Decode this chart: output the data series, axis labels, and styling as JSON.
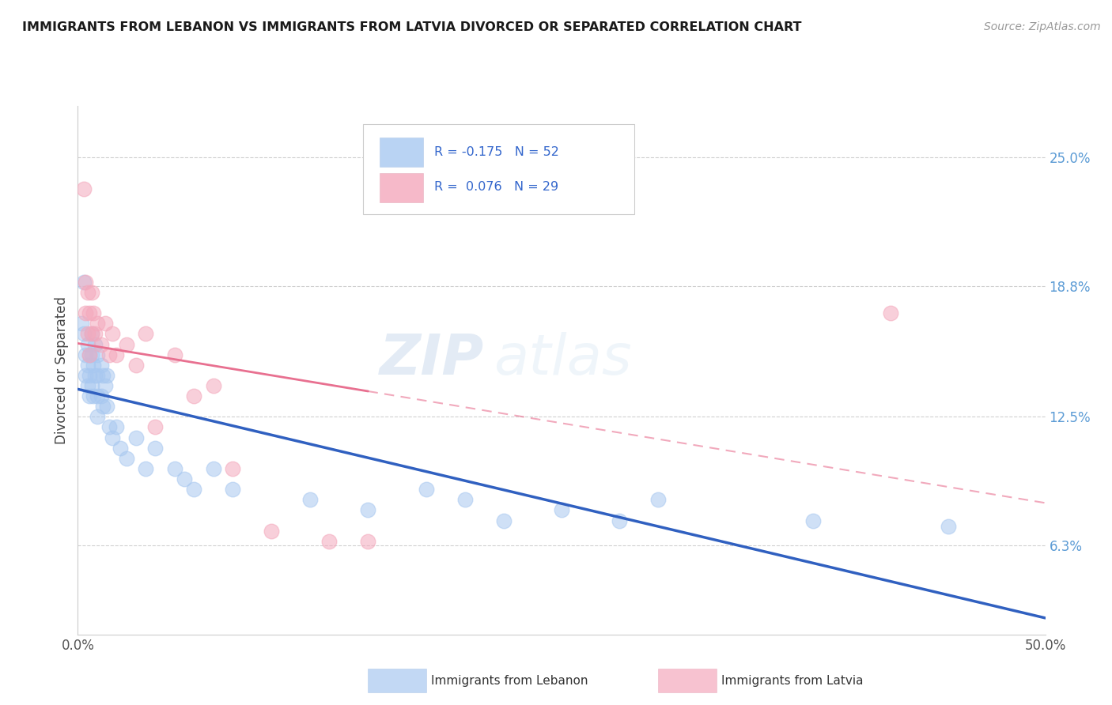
{
  "title": "IMMIGRANTS FROM LEBANON VS IMMIGRANTS FROM LATVIA DIVORCED OR SEPARATED CORRELATION CHART",
  "source_text": "Source: ZipAtlas.com",
  "ylabel": "Divorced or Separated",
  "ytick_labels": [
    "6.3%",
    "12.5%",
    "18.8%",
    "25.0%"
  ],
  "ytick_values": [
    0.063,
    0.125,
    0.188,
    0.25
  ],
  "xlim": [
    0.0,
    0.5
  ],
  "ylim": [
    0.02,
    0.275
  ],
  "legend_r_lebanon": "R = -0.175",
  "legend_n_lebanon": "N = 52",
  "legend_r_latvia": "R =  0.076",
  "legend_n_latvia": "N = 29",
  "color_lebanon": "#A8C8F0",
  "color_latvia": "#F4A8BC",
  "trendline_lebanon_color": "#3060C0",
  "trendline_latvia_color": "#E87090",
  "watermark_zip": "ZIP",
  "watermark_atlas": "atlas",
  "lebanon_x": [
    0.002,
    0.003,
    0.003,
    0.004,
    0.004,
    0.005,
    0.005,
    0.005,
    0.006,
    0.006,
    0.006,
    0.007,
    0.007,
    0.007,
    0.008,
    0.008,
    0.009,
    0.009,
    0.01,
    0.01,
    0.01,
    0.01,
    0.012,
    0.012,
    0.013,
    0.013,
    0.014,
    0.015,
    0.015,
    0.016,
    0.018,
    0.02,
    0.022,
    0.025,
    0.03,
    0.035,
    0.04,
    0.05,
    0.055,
    0.06,
    0.07,
    0.08,
    0.12,
    0.15,
    0.18,
    0.2,
    0.22,
    0.25,
    0.28,
    0.3,
    0.38,
    0.45
  ],
  "lebanon_y": [
    0.17,
    0.19,
    0.165,
    0.155,
    0.145,
    0.16,
    0.15,
    0.14,
    0.155,
    0.145,
    0.135,
    0.165,
    0.155,
    0.14,
    0.15,
    0.135,
    0.16,
    0.145,
    0.155,
    0.145,
    0.135,
    0.125,
    0.15,
    0.135,
    0.145,
    0.13,
    0.14,
    0.145,
    0.13,
    0.12,
    0.115,
    0.12,
    0.11,
    0.105,
    0.115,
    0.1,
    0.11,
    0.1,
    0.095,
    0.09,
    0.1,
    0.09,
    0.085,
    0.08,
    0.09,
    0.085,
    0.075,
    0.08,
    0.075,
    0.085,
    0.075,
    0.072
  ],
  "latvia_x": [
    0.003,
    0.004,
    0.004,
    0.005,
    0.005,
    0.006,
    0.006,
    0.007,
    0.007,
    0.008,
    0.009,
    0.01,
    0.012,
    0.014,
    0.016,
    0.018,
    0.02,
    0.025,
    0.03,
    0.035,
    0.04,
    0.05,
    0.06,
    0.07,
    0.08,
    0.1,
    0.13,
    0.15,
    0.42
  ],
  "latvia_y": [
    0.235,
    0.19,
    0.175,
    0.185,
    0.165,
    0.175,
    0.155,
    0.185,
    0.165,
    0.175,
    0.165,
    0.17,
    0.16,
    0.17,
    0.155,
    0.165,
    0.155,
    0.16,
    0.15,
    0.165,
    0.12,
    0.155,
    0.135,
    0.14,
    0.1,
    0.07,
    0.065,
    0.065,
    0.175
  ]
}
